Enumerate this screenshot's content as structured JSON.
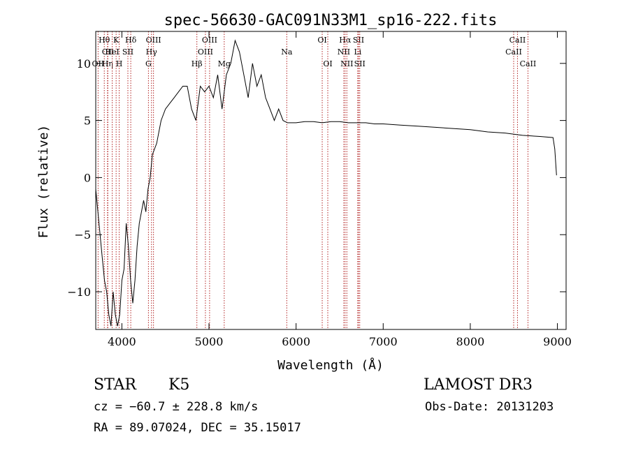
{
  "chart_data": {
    "type": "line",
    "title": "spec-56630-GAC091N33M1_sp16-222.fits",
    "xlabel": "Wavelength (Å)",
    "ylabel": "Flux (relative)",
    "xlim": [
      3700,
      9100
    ],
    "ylim": [
      -13.3,
      12.8
    ],
    "xticks": [
      4000,
      5000,
      6000,
      7000,
      8000,
      9000
    ],
    "yticks": [
      -10,
      -5,
      0,
      5,
      10
    ],
    "grid": false,
    "colors": {
      "spectrum": "#000000",
      "lines": "#b22222",
      "axes": "#000000"
    },
    "series": [
      {
        "x": [
          3700,
          3725,
          3750,
          3775,
          3800,
          3825,
          3850,
          3875,
          3900,
          3925,
          3950,
          3975,
          4000,
          4025,
          4050,
          4075,
          4100,
          4125,
          4150,
          4175,
          4200,
          4225,
          4250,
          4275,
          4300,
          4325,
          4350,
          4400,
          4450,
          4500,
          4550,
          4600,
          4650,
          4700,
          4750,
          4800,
          4850,
          4900,
          4950,
          5000,
          5050,
          5100,
          5150,
          5200,
          5250,
          5300,
          5350,
          5400,
          5450,
          5500,
          5550,
          5600,
          5650,
          5700,
          5750,
          5800,
          5850,
          5900,
          6000,
          6100,
          6200,
          6300,
          6400,
          6500,
          6600,
          6700,
          6800,
          6900,
          7000,
          7200,
          7400,
          7600,
          7800,
          8000,
          8200,
          8400,
          8600,
          8800,
          8950,
          8970,
          8990
        ],
        "y": [
          -1,
          -3,
          -5,
          -7,
          -9,
          -10,
          -12,
          -13,
          -10,
          -12,
          -13,
          -12,
          -9,
          -8,
          -4,
          -6,
          -9,
          -11,
          -9,
          -6,
          -4,
          -3,
          -2,
          -3,
          -1,
          0,
          2,
          3,
          5,
          6,
          6.5,
          7,
          7.5,
          8,
          8,
          6,
          5,
          8,
          7.5,
          8,
          7,
          9,
          6,
          9,
          10,
          12,
          11,
          9,
          7,
          10,
          8,
          9,
          7,
          6,
          5,
          6,
          5,
          4.8,
          4.8,
          4.9,
          4.9,
          4.8,
          4.9,
          4.9,
          4.8,
          4.8,
          4.8,
          4.7,
          4.7,
          4.6,
          4.5,
          4.4,
          4.3,
          4.2,
          4.0,
          3.9,
          3.7,
          3.6,
          3.5,
          2.5,
          0.2
        ]
      }
    ],
    "lines": [
      {
        "label": "Hθ",
        "x": 3798,
        "row": 0
      },
      {
        "label": "CII",
        "x": 3839,
        "row": 1
      },
      {
        "label": "OII",
        "x": 3727,
        "row": 2
      },
      {
        "label": "K",
        "x": 3934,
        "row": 0
      },
      {
        "label": "Hη",
        "x": 3835,
        "row": 2
      },
      {
        "label": "HeI",
        "x": 3889,
        "row": 1
      },
      {
        "label": "SII",
        "x": 4069,
        "row": 1
      },
      {
        "label": "H",
        "x": 3969,
        "row": 2
      },
      {
        "label": "Hδ",
        "x": 4102,
        "row": 0
      },
      {
        "label": "OIII",
        "x": 4363,
        "row": 0
      },
      {
        "label": "Hγ",
        "x": 4340,
        "row": 1
      },
      {
        "label": "G",
        "x": 4305,
        "row": 2
      },
      {
        "label": "Hβ",
        "x": 4861,
        "row": 2
      },
      {
        "label": "OIII",
        "x": 5007,
        "row": 0
      },
      {
        "label": "OIII",
        "x": 4959,
        "row": 1
      },
      {
        "label": "Mg",
        "x": 5175,
        "row": 2
      },
      {
        "label": "Na",
        "x": 5893,
        "row": 1
      },
      {
        "label": "OI",
        "x": 6300,
        "row": 0
      },
      {
        "label": "OI",
        "x": 6364,
        "row": 2
      },
      {
        "label": "Hα",
        "x": 6563,
        "row": 0
      },
      {
        "label": "NII",
        "x": 6548,
        "row": 1
      },
      {
        "label": "NII",
        "x": 6583,
        "row": 2
      },
      {
        "label": "SII",
        "x": 6717,
        "row": 0
      },
      {
        "label": "Li",
        "x": 6708,
        "row": 1
      },
      {
        "label": "SII",
        "x": 6731,
        "row": 2
      },
      {
        "label": "CaII",
        "x": 8542,
        "row": 0
      },
      {
        "label": "CaII",
        "x": 8498,
        "row": 1
      },
      {
        "label": "CaII",
        "x": 8662,
        "row": 2
      }
    ]
  },
  "info": {
    "object_class": "STAR",
    "subclass": "K5",
    "survey": "LAMOST DR3",
    "cz": "cz = −60.7 ± 228.8 km/s",
    "obs_date": "Obs-Date: 20131203",
    "coords": "RA =  89.07024, DEC =  35.15017"
  }
}
